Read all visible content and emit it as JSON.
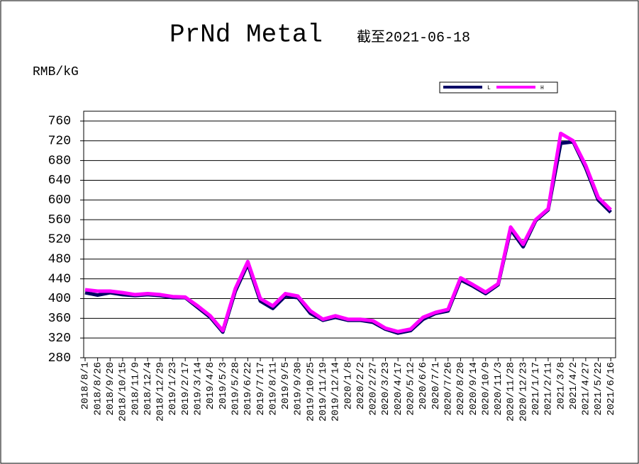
{
  "chart_data": {
    "type": "line",
    "title": "PrNd Metal",
    "subtitle": "截至2021-06-18",
    "y_label": "RMB/kG",
    "categories": [
      "2018/8/1",
      "2018/8/26",
      "2018/9/20",
      "2018/10/15",
      "2018/11/9",
      "2018/12/4",
      "2018/12/29",
      "2019/1/23",
      "2019/2/17",
      "2019/3/14",
      "2019/4/8",
      "2019/5/3",
      "2019/5/28",
      "2019/6/22",
      "2019/7/17",
      "2019/8/11",
      "2019/9/5",
      "2019/9/30",
      "2019/10/25",
      "2019/11/19",
      "2019/12/14",
      "2020/1/8",
      "2020/2/2",
      "2020/2/27",
      "2020/3/23",
      "2020/4/17",
      "2020/5/12",
      "2020/6/6",
      "2020/7/1",
      "2020/7/26",
      "2020/8/20",
      "2020/9/14",
      "2020/10/9",
      "2020/11/3",
      "2020/11/28",
      "2020/12/23",
      "2021/1/17",
      "2021/2/11",
      "2021/3/8",
      "2021/4/2",
      "2021/4/27",
      "2021/5/22",
      "2021/6/16"
    ],
    "series": [
      {
        "name": "L",
        "color": "#000066",
        "values": [
          412,
          407,
          412,
          408,
          406,
          408,
          406,
          402,
          402,
          382,
          362,
          332,
          415,
          470,
          395,
          380,
          405,
          402,
          370,
          356,
          362,
          356,
          356,
          352,
          338,
          330,
          335,
          358,
          370,
          375,
          438,
          425,
          410,
          428,
          540,
          505,
          558,
          580,
          715,
          718,
          665,
          600,
          575
        ]
      },
      {
        "name": "H",
        "color": "#ff00ff",
        "values": [
          418,
          415,
          415,
          412,
          408,
          410,
          408,
          404,
          403,
          385,
          365,
          335,
          420,
          475,
          400,
          385,
          410,
          405,
          375,
          358,
          365,
          358,
          358,
          355,
          340,
          333,
          338,
          362,
          372,
          378,
          442,
          428,
          413,
          430,
          545,
          510,
          560,
          582,
          735,
          720,
          670,
          605,
          580
        ]
      }
    ],
    "ylim": [
      280,
      780
    ],
    "yticks": [
      280,
      320,
      360,
      400,
      440,
      480,
      520,
      560,
      600,
      640,
      680,
      720,
      760
    ],
    "grid": true
  }
}
